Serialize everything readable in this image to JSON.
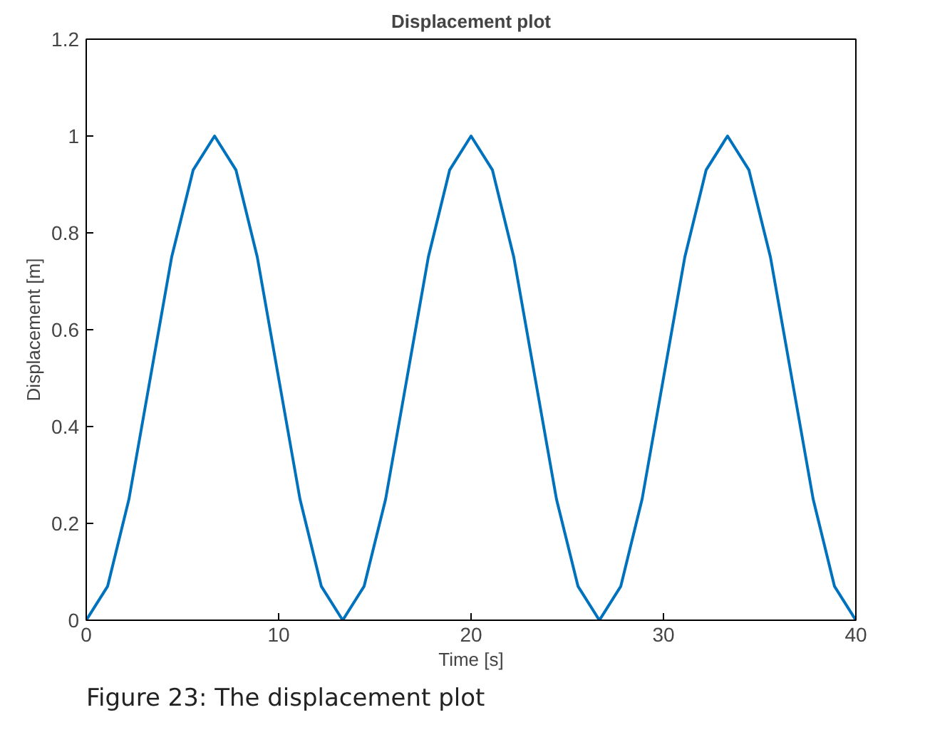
{
  "chart_data": {
    "type": "line",
    "title": "Displacement plot",
    "xlabel": "Time [s]",
    "ylabel": "Displacement [m]",
    "x": [
      0,
      1.11,
      2.22,
      3.33,
      4.44,
      5.56,
      6.67,
      7.78,
      8.89,
      10,
      11.11,
      12.22,
      13.33,
      14.44,
      15.56,
      16.67,
      17.78,
      18.89,
      20,
      21.11,
      22.22,
      23.33,
      24.44,
      25.56,
      26.67,
      27.78,
      28.89,
      30,
      31.11,
      32.22,
      33.33,
      34.44,
      35.56,
      36.67,
      37.78,
      38.89,
      40
    ],
    "series": [
      {
        "color": "#0072bd",
        "values": [
          0,
          0.07,
          0.25,
          0.5,
          0.75,
          0.93,
          1,
          0.93,
          0.75,
          0.5,
          0.25,
          0.07,
          0,
          0.07,
          0.25,
          0.5,
          0.75,
          0.93,
          1,
          0.93,
          0.75,
          0.5,
          0.25,
          0.07,
          0,
          0.07,
          0.25,
          0.5,
          0.75,
          0.93,
          1,
          0.93,
          0.75,
          0.5,
          0.25,
          0.07,
          0
        ]
      }
    ],
    "xlim": [
      0,
      40
    ],
    "xticks": [
      0,
      10,
      20,
      30,
      40
    ],
    "ylim": [
      0,
      1.2
    ],
    "yticks": [
      0,
      {
        "value": 0.2,
        "label": "0.2"
      },
      {
        "value": 0.4,
        "label": "0.4"
      },
      {
        "value": 0.6,
        "label": "0.6"
      },
      {
        "value": 0.8,
        "label": "0.8"
      },
      1,
      {
        "value": 1.2,
        "label": "1.2"
      }
    ],
    "grid": false,
    "marker": "none",
    "line_style": "solid",
    "annotations": [
      "Figure 23: The displacement plot"
    ]
  }
}
